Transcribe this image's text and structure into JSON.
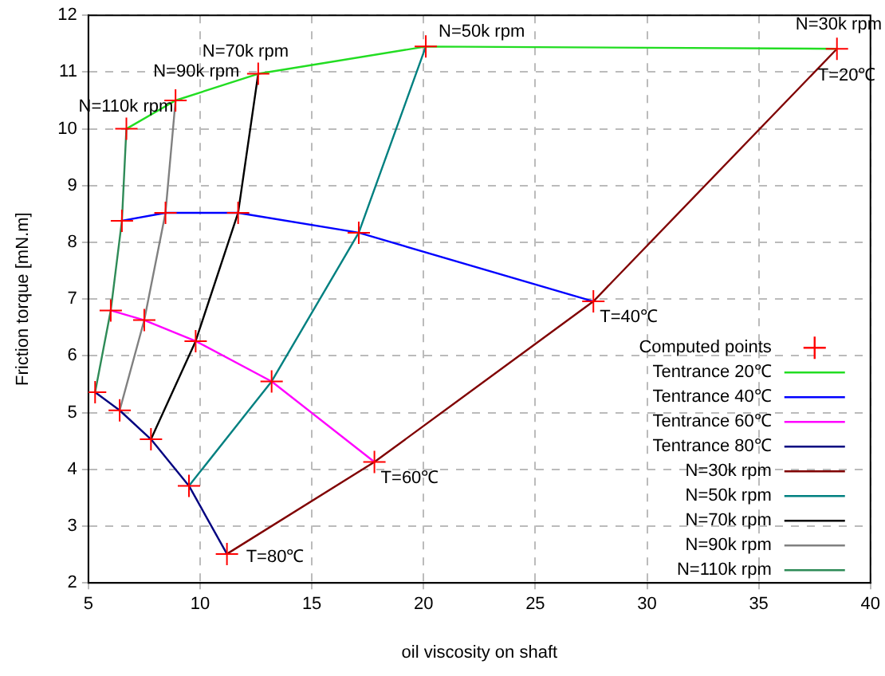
{
  "chart_data": {
    "type": "line",
    "xlabel": "oil viscosity on shaft",
    "ylabel": "Friction torque [mN.m]",
    "xlim": [
      5,
      40
    ],
    "ylim": [
      2,
      12
    ],
    "xticks": [
      5,
      10,
      15,
      20,
      25,
      30,
      35,
      40
    ],
    "yticks": [
      2,
      3,
      4,
      5,
      6,
      7,
      8,
      9,
      10,
      11,
      12
    ],
    "grid": true,
    "legend": "bottom right",
    "series": [
      {
        "name": "Computed points",
        "type": "scatter",
        "marker": "cross",
        "color": "#ff0000",
        "x": [
          6.7,
          8.9,
          12.6,
          20.1,
          38.5,
          6.5,
          8.45,
          11.7,
          17.1,
          27.6,
          6.0,
          7.5,
          9.8,
          13.2,
          17.8,
          5.3,
          6.4,
          7.8,
          9.5,
          11.2
        ],
        "values": [
          10.0,
          10.5,
          10.97,
          11.45,
          11.41,
          8.38,
          8.52,
          8.52,
          8.17,
          6.96,
          6.8,
          6.63,
          6.26,
          5.55,
          4.13,
          5.36,
          5.04,
          4.53,
          3.71,
          2.51
        ]
      },
      {
        "name": "Tentrance 20℃",
        "color": "#22dd22",
        "x": [
          6.7,
          8.9,
          12.6,
          20.1,
          38.5
        ],
        "values": [
          10.0,
          10.5,
          10.97,
          11.45,
          11.41
        ]
      },
      {
        "name": "Tentrance 40℃",
        "color": "#0000ff",
        "x": [
          6.5,
          8.45,
          11.7,
          17.1,
          27.6
        ],
        "values": [
          8.38,
          8.52,
          8.52,
          8.17,
          6.96
        ]
      },
      {
        "name": "Tentrance 60℃",
        "color": "#ff00ff",
        "x": [
          6.0,
          7.5,
          9.8,
          13.2,
          17.8
        ],
        "values": [
          6.8,
          6.63,
          6.26,
          5.55,
          4.13
        ]
      },
      {
        "name": "Tentrance 80℃",
        "color": "#000080",
        "x": [
          5.3,
          6.4,
          7.8,
          9.5,
          11.2
        ],
        "values": [
          5.36,
          5.04,
          4.53,
          3.71,
          2.51
        ]
      },
      {
        "name": "N=30k rpm",
        "color": "#800000",
        "x": [
          11.2,
          17.8,
          27.6,
          38.5
        ],
        "values": [
          2.51,
          4.13,
          6.96,
          11.41
        ]
      },
      {
        "name": "N=50k rpm",
        "color": "#008080",
        "x": [
          9.5,
          13.2,
          17.1,
          20.1
        ],
        "values": [
          3.71,
          5.55,
          8.17,
          11.45
        ]
      },
      {
        "name": "N=70k rpm",
        "color": "#000000",
        "x": [
          7.8,
          9.8,
          11.7,
          12.6
        ],
        "values": [
          4.53,
          6.26,
          8.52,
          10.97
        ]
      },
      {
        "name": "N=90k rpm",
        "color": "#808080",
        "x": [
          6.4,
          7.5,
          8.45,
          8.9
        ],
        "values": [
          5.04,
          6.63,
          8.52,
          10.5
        ]
      },
      {
        "name": "N=110k rpm",
        "color": "#2e8b57",
        "x": [
          5.3,
          6.0,
          6.5,
          6.7
        ],
        "values": [
          5.36,
          6.8,
          8.38,
          10.0
        ]
      }
    ],
    "annotations": [
      {
        "text": "N=110k rpm",
        "x": 6.7,
        "y": 10.0
      },
      {
        "text": "N=90k rpm",
        "x": 8.9,
        "y": 10.5
      },
      {
        "text": "N=70k rpm",
        "x": 12.6,
        "y": 10.97
      },
      {
        "text": "N=50k rpm",
        "x": 20.1,
        "y": 11.45
      },
      {
        "text": "N=30k rpm",
        "x": 38.5,
        "y": 11.41
      },
      {
        "text": "T=20℃",
        "x": 38.5,
        "y": 11.41
      },
      {
        "text": "T=40℃",
        "x": 27.6,
        "y": 6.96
      },
      {
        "text": "T=60℃",
        "x": 17.8,
        "y": 4.13
      },
      {
        "text": "T=80℃",
        "x": 11.2,
        "y": 2.51
      }
    ]
  }
}
